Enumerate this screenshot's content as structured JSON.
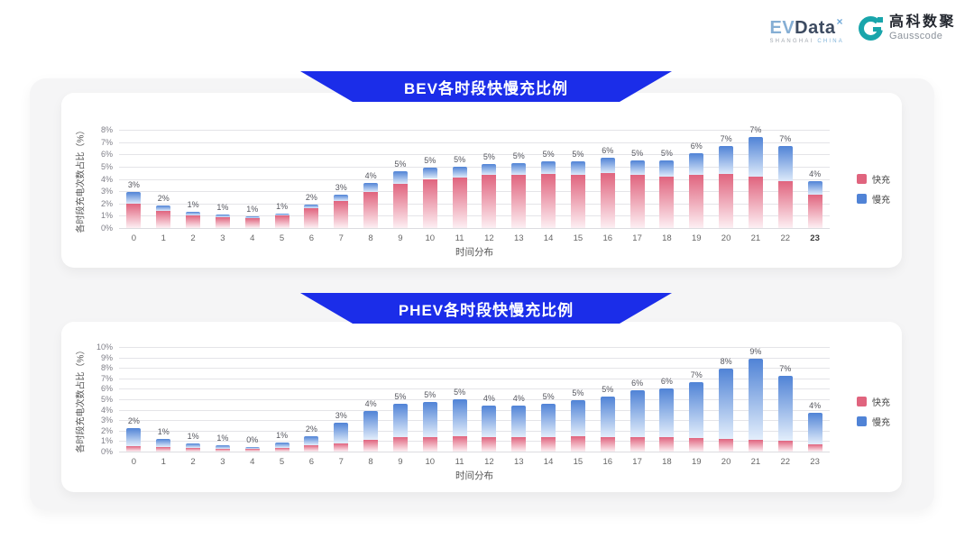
{
  "logos": {
    "evdata": {
      "ev": "EV",
      "data": "Data",
      "x": "×",
      "tagline_left": "SHANGHAI",
      "tagline_right": "CHINA"
    },
    "gausscode": {
      "name_cn": "高科数聚",
      "name_en": "Gausscode"
    }
  },
  "colors": {
    "banner_blue": "#1b2de9",
    "fast_pink": "#e0647e",
    "slow_blue": "#5083d6",
    "gausscode_teal": "#19a5ab"
  },
  "chart_data": [
    {
      "id": "bev",
      "type": "bar",
      "stacked": true,
      "title": "BEV各时段快慢充比例",
      "xlabel": "时间分布",
      "ylabel": "各时段充电次数占比（%）",
      "ylim": [
        0,
        8
      ],
      "ytick_step": 1,
      "grid": true,
      "legend_position": "right",
      "categories": [
        0,
        1,
        2,
        3,
        4,
        5,
        6,
        7,
        8,
        9,
        10,
        11,
        12,
        13,
        14,
        15,
        16,
        17,
        18,
        19,
        20,
        21,
        22,
        23
      ],
      "series": [
        {
          "name": "快充",
          "color": "#e0647e",
          "fade": "#fdeff3",
          "values": [
            2.0,
            1.4,
            1.0,
            0.9,
            0.8,
            1.0,
            1.6,
            2.2,
            2.9,
            3.6,
            4.0,
            4.1,
            4.3,
            4.3,
            4.4,
            4.3,
            4.5,
            4.3,
            4.2,
            4.3,
            4.4,
            4.2,
            3.8,
            2.7
          ]
        },
        {
          "name": "慢充",
          "color": "#5083d6",
          "fade": "#ddeafa",
          "values": [
            0.9,
            0.4,
            0.3,
            0.2,
            0.15,
            0.15,
            0.3,
            0.5,
            0.8,
            1.0,
            0.9,
            0.9,
            0.9,
            1.0,
            1.0,
            1.1,
            1.2,
            1.2,
            1.3,
            1.8,
            2.3,
            3.2,
            2.9,
            1.1
          ]
        }
      ],
      "bar_labels": [
        "3%",
        "2%",
        "1%",
        "1%",
        "1%",
        "1%",
        "2%",
        "3%",
        "4%",
        "5%",
        "5%",
        "5%",
        "5%",
        "5%",
        "5%",
        "5%",
        "6%",
        "5%",
        "5%",
        "6%",
        "7%",
        "7%",
        "7%",
        "4%"
      ]
    },
    {
      "id": "phev",
      "type": "bar",
      "stacked": true,
      "title": "PHEV各时段快慢充比例",
      "xlabel": "时间分布",
      "ylabel": "各时段充电次数占比（%）",
      "ylim": [
        0,
        10
      ],
      "ytick_step": 1,
      "grid": true,
      "legend_position": "right",
      "categories": [
        0,
        1,
        2,
        3,
        4,
        5,
        6,
        7,
        8,
        9,
        10,
        11,
        12,
        13,
        14,
        15,
        16,
        17,
        18,
        19,
        20,
        21,
        22,
        23
      ],
      "series": [
        {
          "name": "快充",
          "color": "#e0647e",
          "fade": "#fdeff3",
          "values": [
            0.5,
            0.4,
            0.35,
            0.3,
            0.25,
            0.35,
            0.6,
            0.8,
            1.1,
            1.4,
            1.4,
            1.5,
            1.4,
            1.4,
            1.4,
            1.5,
            1.4,
            1.4,
            1.4,
            1.3,
            1.2,
            1.1,
            1.0,
            0.7
          ]
        },
        {
          "name": "慢充",
          "color": "#5083d6",
          "fade": "#e3eefb",
          "values": [
            1.7,
            0.8,
            0.45,
            0.3,
            0.2,
            0.5,
            0.9,
            1.95,
            2.75,
            3.2,
            3.3,
            3.5,
            3.0,
            3.0,
            3.2,
            3.4,
            3.9,
            4.5,
            4.6,
            5.3,
            6.7,
            7.8,
            6.2,
            3.0
          ]
        }
      ],
      "bar_labels": [
        "2%",
        "1%",
        "1%",
        "1%",
        "0%",
        "1%",
        "2%",
        "3%",
        "4%",
        "5%",
        "5%",
        "5%",
        "4%",
        "4%",
        "5%",
        "5%",
        "5%",
        "6%",
        "6%",
        "7%",
        "8%",
        "9%",
        "7%",
        "4%"
      ]
    }
  ]
}
